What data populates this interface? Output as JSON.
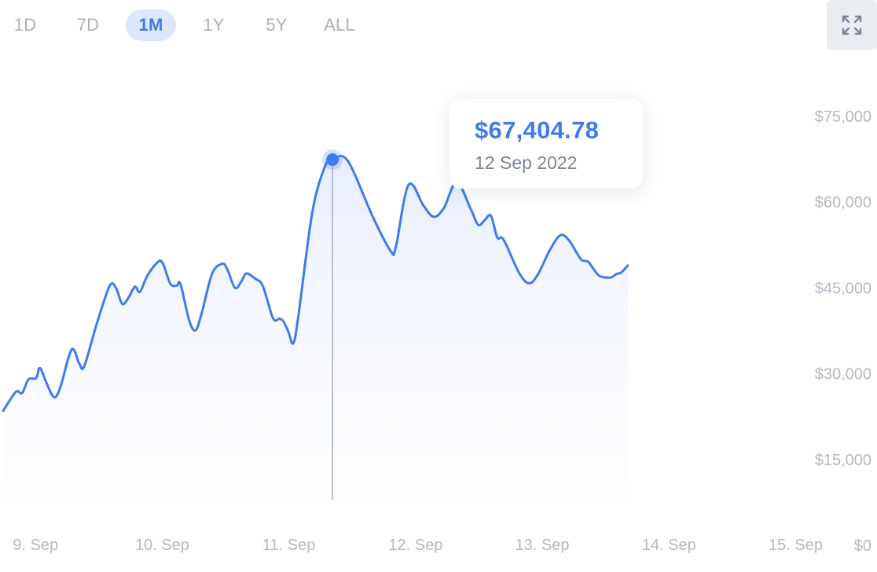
{
  "range_selector": {
    "options": [
      {
        "label": "1D",
        "active": false
      },
      {
        "label": "7D",
        "active": false
      },
      {
        "label": "1M",
        "active": true
      },
      {
        "label": "1Y",
        "active": false
      },
      {
        "label": "5Y",
        "active": false
      },
      {
        "label": "ALL",
        "active": false
      }
    ]
  },
  "fullscreen_icon": "expand-icon",
  "tooltip": {
    "value": "$67,404.78",
    "date": "12 Sep 2022"
  },
  "colors": {
    "line": "#3f7bec",
    "active_range_bg": "#dde7fb",
    "axis_text": "#b4b8c4",
    "crosshair": "#a9adb8"
  },
  "chart_data": {
    "type": "area",
    "x_axis": {
      "tick_labels": [
        "9. Sep",
        "10. Sep",
        "11. Sep",
        "12. Sep",
        "13. Sep",
        "14. Sep",
        "15. Sep"
      ],
      "range": [
        8.98,
        15.22
      ]
    },
    "y_axis": {
      "tick_values": [
        0,
        15000,
        30000,
        45000,
        60000,
        75000
      ],
      "tick_labels": [
        "$0",
        "$15,000",
        "$30,000",
        "$45,000",
        "$60,000",
        "$75,000"
      ],
      "position": "right",
      "range": [
        0,
        78000
      ]
    },
    "series": [
      {
        "points": [
          [
            8.98,
            23500
          ],
          [
            9.08,
            26800
          ],
          [
            9.13,
            26600
          ],
          [
            9.18,
            29000
          ],
          [
            9.24,
            29200
          ],
          [
            9.27,
            31000
          ],
          [
            9.32,
            28500
          ],
          [
            9.38,
            25900
          ],
          [
            9.43,
            27500
          ],
          [
            9.52,
            34200
          ],
          [
            9.58,
            31800
          ],
          [
            9.62,
            31300
          ],
          [
            9.72,
            38800
          ],
          [
            9.82,
            45300
          ],
          [
            9.87,
            45000
          ],
          [
            9.92,
            42200
          ],
          [
            9.97,
            43300
          ],
          [
            10.02,
            45200
          ],
          [
            10.06,
            44300
          ],
          [
            10.12,
            47200
          ],
          [
            10.2,
            49500
          ],
          [
            10.24,
            49300
          ],
          [
            10.3,
            45700
          ],
          [
            10.35,
            45400
          ],
          [
            10.38,
            45600
          ],
          [
            10.45,
            39200
          ],
          [
            10.5,
            37600
          ],
          [
            10.55,
            40800
          ],
          [
            10.63,
            47500
          ],
          [
            10.71,
            49200
          ],
          [
            10.75,
            48200
          ],
          [
            10.81,
            45000
          ],
          [
            10.86,
            46100
          ],
          [
            10.9,
            47500
          ],
          [
            10.97,
            46600
          ],
          [
            11.03,
            45300
          ],
          [
            11.11,
            39700
          ],
          [
            11.16,
            39600
          ],
          [
            11.19,
            39200
          ],
          [
            11.23,
            37400
          ],
          [
            11.27,
            35300
          ],
          [
            11.31,
            40000
          ],
          [
            11.42,
            58200
          ],
          [
            11.52,
            66200
          ],
          [
            11.58,
            67405
          ],
          [
            11.7,
            67200
          ],
          [
            11.9,
            57300
          ],
          [
            12.04,
            51400
          ],
          [
            12.08,
            52200
          ],
          [
            12.18,
            63000
          ],
          [
            12.3,
            59300
          ],
          [
            12.38,
            57400
          ],
          [
            12.46,
            59000
          ],
          [
            12.56,
            63500
          ],
          [
            12.67,
            58800
          ],
          [
            12.73,
            56000
          ],
          [
            12.78,
            56800
          ],
          [
            12.83,
            57600
          ],
          [
            12.88,
            53800
          ],
          [
            12.93,
            53400
          ],
          [
            13.05,
            47700
          ],
          [
            13.13,
            45800
          ],
          [
            13.2,
            47300
          ],
          [
            13.3,
            51800
          ],
          [
            13.38,
            54200
          ],
          [
            13.45,
            53200
          ],
          [
            13.54,
            50000
          ],
          [
            13.6,
            49500
          ],
          [
            13.68,
            47200
          ],
          [
            13.77,
            46800
          ],
          [
            13.82,
            47400
          ],
          [
            13.86,
            47700
          ],
          [
            13.91,
            48900
          ]
        ]
      }
    ],
    "selected_point": {
      "x": 11.58,
      "y": 67404.78
    },
    "grid": false,
    "legend": false
  }
}
